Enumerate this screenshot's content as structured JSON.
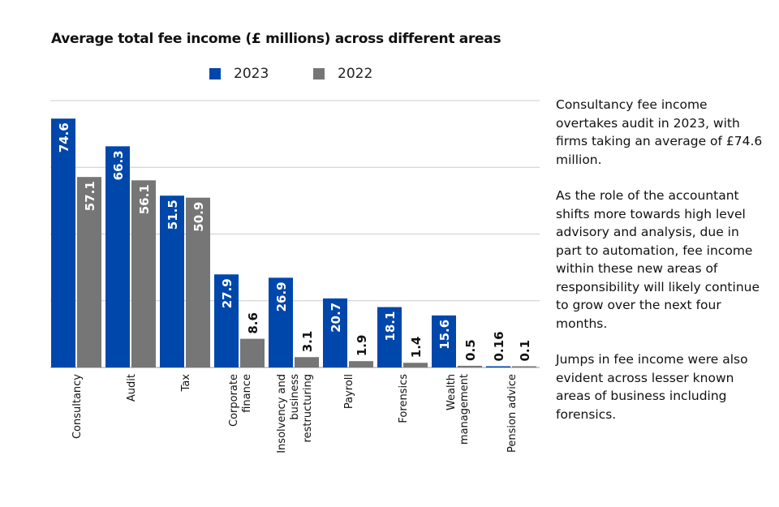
{
  "chart_data": {
    "type": "bar",
    "title": "Average total fee income (£ millions) across different areas",
    "categories": [
      "Consultancy",
      "Audit",
      "Tax",
      "Corporate finance",
      "Insolvency and business restructuring",
      "Payroll",
      "Forensics",
      "Wealth management",
      "Pension advice"
    ],
    "category_lines": [
      [
        "Consultancy"
      ],
      [
        "Audit"
      ],
      [
        "Tax"
      ],
      [
        "Corporate",
        "finance"
      ],
      [
        "Insolvency and",
        "business",
        "restructuring"
      ],
      [
        "Payroll"
      ],
      [
        "Forensics"
      ],
      [
        "Wealth",
        "management"
      ],
      [
        "Pension advice"
      ]
    ],
    "series": [
      {
        "name": "2023",
        "color": "#0047AB",
        "values": [
          74.6,
          66.3,
          51.5,
          27.9,
          26.9,
          20.7,
          18.1,
          15.6,
          0.16
        ]
      },
      {
        "name": "2022",
        "color": "#767676",
        "values": [
          57.1,
          56.1,
          50.9,
          8.6,
          3.1,
          1.9,
          1.4,
          0.5,
          0.1
        ]
      }
    ],
    "ylim": [
      0,
      80
    ],
    "gridlines": [
      0,
      20,
      40,
      60,
      80
    ],
    "grid": true,
    "y_tick_labels_shown": false,
    "legend": "top",
    "data_labels": true
  },
  "notes": [
    "Consultancy fee income overtakes audit in 2023, with firms taking an average of £74.6 million.",
    "As the role of the accountant shifts more towards high level advisory and analysis, due in part to automation, fee income within these new areas of responsibility will likely continue to grow over the next four months.",
    "Jumps in fee income were also evident across lesser known areas of business including forensics."
  ]
}
